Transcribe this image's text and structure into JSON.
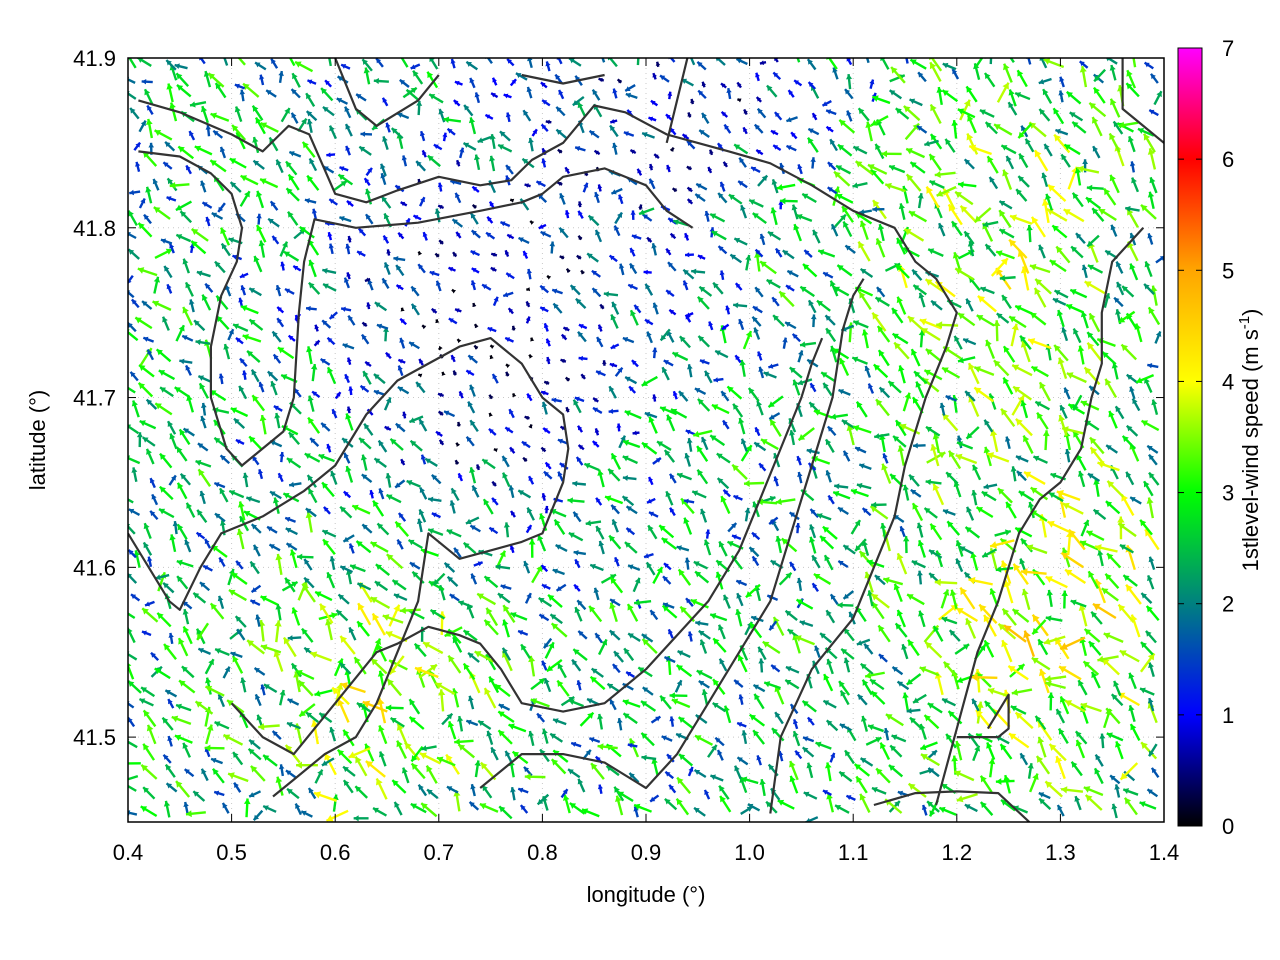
{
  "chart_data": {
    "type": "vector-field",
    "xlabel": "longitude (°)",
    "ylabel": "latitude (°)",
    "xlim": [
      0.4,
      1.4
    ],
    "ylim": [
      41.45,
      41.9
    ],
    "xticks": [
      "0.4",
      "0.5",
      "0.6",
      "0.7",
      "0.8",
      "0.9",
      "1.0",
      "1.1",
      "1.2",
      "1.3",
      "1.4"
    ],
    "yticks": [
      "41.5",
      "41.6",
      "41.7",
      "41.8",
      "41.9"
    ],
    "xtick_values": [
      0.4,
      0.5,
      0.6,
      0.7,
      0.8,
      0.9,
      1.0,
      1.1,
      1.2,
      1.3,
      1.4
    ],
    "ytick_values": [
      41.5,
      41.6,
      41.7,
      41.8,
      41.9
    ],
    "colorbar": {
      "label_prefix": "1stlevel-wind speed (m s",
      "label_exponent": "-1",
      "label_suffix": ")",
      "range": [
        0,
        7
      ],
      "ticks": [
        "0",
        "1",
        "2",
        "3",
        "4",
        "5",
        "6",
        "7"
      ],
      "tick_values": [
        0,
        1,
        2,
        3,
        4,
        5,
        6,
        7
      ],
      "palette": [
        "#000000",
        "#0000ff",
        "#008080",
        "#00ff00",
        "#ffff00",
        "#ffa500",
        "#ff0000",
        "#ff00ff"
      ]
    },
    "grid": true,
    "contour_color": "#333333",
    "contours": [
      [
        [
          0.41,
          41.875
        ],
        [
          0.45,
          41.868
        ],
        [
          0.5,
          41.855
        ],
        [
          0.53,
          41.845
        ],
        [
          0.555,
          41.86
        ],
        [
          0.575,
          41.855
        ],
        [
          0.6,
          41.82
        ],
        [
          0.63,
          41.815
        ],
        [
          0.66,
          41.822
        ],
        [
          0.7,
          41.83
        ],
        [
          0.74,
          41.825
        ],
        [
          0.77,
          41.828
        ],
        [
          0.79,
          41.84
        ],
        [
          0.82,
          41.85
        ],
        [
          0.85,
          41.872
        ],
        [
          0.88,
          41.868
        ],
        [
          0.92,
          41.855
        ],
        [
          0.98,
          41.845
        ],
        [
          1.02,
          41.838
        ],
        [
          1.06,
          41.825
        ],
        [
          1.1,
          41.81
        ],
        [
          1.14,
          41.8
        ],
        [
          1.16,
          41.78
        ],
        [
          1.18,
          41.77
        ],
        [
          1.2,
          41.75
        ],
        [
          1.19,
          41.73
        ],
        [
          1.17,
          41.7
        ],
        [
          1.15,
          41.66
        ],
        [
          1.14,
          41.63
        ],
        [
          1.12,
          41.6
        ],
        [
          1.1,
          41.57
        ],
        [
          1.06,
          41.54
        ],
        [
          1.03,
          41.5
        ],
        [
          1.02,
          41.455
        ]
      ],
      [
        [
          0.41,
          41.845
        ],
        [
          0.45,
          41.842
        ],
        [
          0.48,
          41.832
        ],
        [
          0.5,
          41.82
        ],
        [
          0.51,
          41.8
        ],
        [
          0.505,
          41.78
        ],
        [
          0.49,
          41.76
        ],
        [
          0.48,
          41.73
        ],
        [
          0.48,
          41.7
        ],
        [
          0.495,
          41.67
        ],
        [
          0.51,
          41.66
        ],
        [
          0.53,
          41.67
        ],
        [
          0.55,
          41.68
        ],
        [
          0.56,
          41.7
        ],
        [
          0.565,
          41.75
        ],
        [
          0.57,
          41.78
        ],
        [
          0.58,
          41.805
        ],
        [
          0.62,
          41.8
        ],
        [
          0.68,
          41.803
        ],
        [
          0.74,
          41.81
        ],
        [
          0.78,
          41.815
        ],
        [
          0.8,
          41.82
        ],
        [
          0.82,
          41.83
        ],
        [
          0.86,
          41.835
        ],
        [
          0.9,
          41.825
        ],
        [
          0.92,
          41.81
        ],
        [
          0.945,
          41.8
        ]
      ],
      [
        [
          0.4,
          41.62
        ],
        [
          0.42,
          41.6
        ],
        [
          0.44,
          41.58
        ],
        [
          0.45,
          41.575
        ],
        [
          0.47,
          41.6
        ],
        [
          0.49,
          41.62
        ],
        [
          0.53,
          41.63
        ],
        [
          0.57,
          41.645
        ],
        [
          0.6,
          41.66
        ],
        [
          0.63,
          41.69
        ],
        [
          0.66,
          41.71
        ],
        [
          0.69,
          41.72
        ],
        [
          0.72,
          41.73
        ],
        [
          0.75,
          41.735
        ],
        [
          0.78,
          41.72
        ],
        [
          0.8,
          41.7
        ],
        [
          0.82,
          41.69
        ],
        [
          0.825,
          41.67
        ],
        [
          0.82,
          41.65
        ],
        [
          0.8,
          41.62
        ],
        [
          0.78,
          41.615
        ],
        [
          0.75,
          41.61
        ],
        [
          0.72,
          41.605
        ],
        [
          0.69,
          41.62
        ],
        [
          0.68,
          41.58
        ],
        [
          0.66,
          41.55
        ],
        [
          0.64,
          41.52
        ],
        [
          0.62,
          41.5
        ],
        [
          0.59,
          41.49
        ],
        [
          0.56,
          41.475
        ],
        [
          0.54,
          41.465
        ]
      ],
      [
        [
          0.5,
          41.52
        ],
        [
          0.53,
          41.5
        ],
        [
          0.56,
          41.49
        ],
        [
          0.6,
          41.52
        ],
        [
          0.64,
          41.55
        ],
        [
          0.66,
          41.555
        ],
        [
          0.69,
          41.565
        ],
        [
          0.72,
          41.56
        ],
        [
          0.74,
          41.555
        ],
        [
          0.76,
          41.54
        ],
        [
          0.78,
          41.52
        ],
        [
          0.82,
          41.515
        ],
        [
          0.86,
          41.52
        ],
        [
          0.9,
          41.54
        ],
        [
          0.93,
          41.56
        ],
        [
          0.96,
          41.58
        ],
        [
          0.99,
          41.61
        ],
        [
          1.01,
          41.64
        ],
        [
          1.03,
          41.67
        ],
        [
          1.05,
          41.7
        ],
        [
          1.06,
          41.72
        ],
        [
          1.07,
          41.735
        ]
      ],
      [
        [
          0.74,
          41.47
        ],
        [
          0.78,
          41.49
        ],
        [
          0.82,
          41.49
        ],
        [
          0.86,
          41.485
        ],
        [
          0.9,
          41.47
        ],
        [
          0.93,
          41.49
        ],
        [
          0.96,
          41.52
        ],
        [
          0.99,
          41.55
        ],
        [
          1.02,
          41.58
        ],
        [
          1.04,
          41.62
        ],
        [
          1.06,
          41.66
        ],
        [
          1.08,
          41.7
        ],
        [
          1.09,
          41.74
        ],
        [
          1.1,
          41.76
        ],
        [
          1.11,
          41.77
        ]
      ],
      [
        [
          1.12,
          41.46
        ],
        [
          1.16,
          41.467
        ],
        [
          1.2,
          41.468
        ],
        [
          1.24,
          41.467
        ],
        [
          1.27,
          41.45
        ]
      ],
      [
        [
          1.2,
          41.5
        ],
        [
          1.24,
          41.5
        ],
        [
          1.25,
          41.505
        ],
        [
          1.25,
          41.525
        ],
        [
          1.23,
          41.505
        ]
      ],
      [
        [
          1.18,
          41.46
        ],
        [
          1.22,
          41.55
        ],
        [
          1.24,
          41.58
        ],
        [
          1.26,
          41.62
        ],
        [
          1.28,
          41.64
        ],
        [
          1.3,
          41.65
        ],
        [
          1.32,
          41.67
        ],
        [
          1.33,
          41.7
        ],
        [
          1.34,
          41.72
        ],
        [
          1.34,
          41.75
        ],
        [
          1.35,
          41.78
        ],
        [
          1.38,
          41.8
        ]
      ],
      [
        [
          0.92,
          41.85
        ],
        [
          0.94,
          41.9
        ]
      ],
      [
        [
          0.78,
          41.89
        ],
        [
          0.82,
          41.885
        ],
        [
          0.86,
          41.89
        ]
      ],
      [
        [
          1.36,
          41.9
        ],
        [
          1.36,
          41.87
        ],
        [
          1.38,
          41.86
        ],
        [
          1.4,
          41.85
        ]
      ],
      [
        [
          0.6,
          41.9
        ],
        [
          0.62,
          41.87
        ],
        [
          0.64,
          41.86
        ],
        [
          0.68,
          41.875
        ],
        [
          0.7,
          41.89
        ]
      ]
    ]
  }
}
